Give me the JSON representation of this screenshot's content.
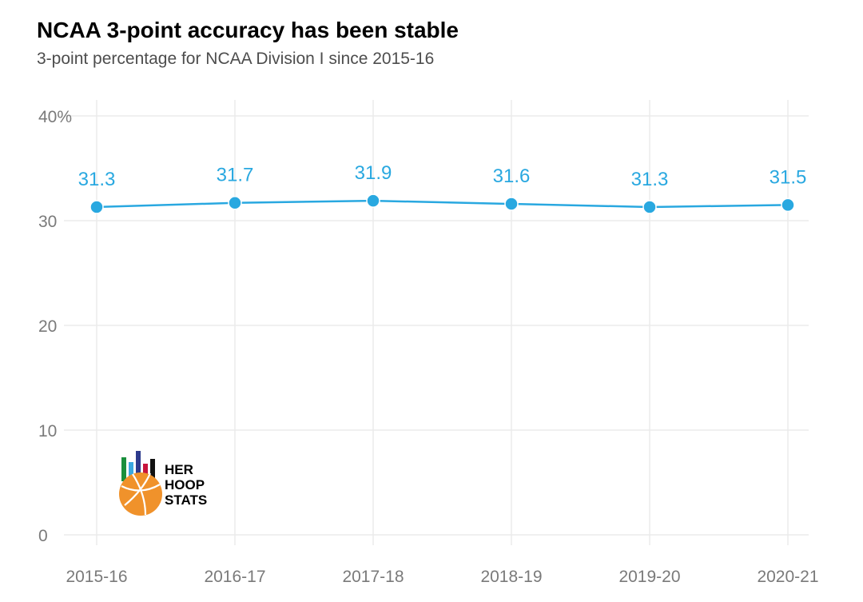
{
  "title": "NCAA 3-point accuracy has been stable",
  "subtitle": "3-point percentage for NCAA Division I since 2015-16",
  "colors": {
    "line": "#29a8e0",
    "grid": "#ebebeb",
    "ball": "#f0922b"
  },
  "logo": {
    "line1": "HER",
    "line2": "HOOP",
    "line3": "STATS"
  },
  "chart_data": {
    "type": "line",
    "categories": [
      "2015-16",
      "2016-17",
      "2017-18",
      "2018-19",
      "2019-20",
      "2020-21"
    ],
    "values": [
      31.3,
      31.7,
      31.9,
      31.6,
      31.3,
      31.5
    ],
    "data_labels": [
      "31.3",
      "31.7",
      "31.9",
      "31.6",
      "31.3",
      "31.5"
    ],
    "ylim": [
      0,
      40
    ],
    "yticks": [
      0,
      10,
      20,
      30,
      40
    ],
    "ytick_labels": [
      "0",
      "10",
      "20",
      "30",
      "40%"
    ],
    "grid": true,
    "xlabel": "",
    "ylabel": ""
  }
}
